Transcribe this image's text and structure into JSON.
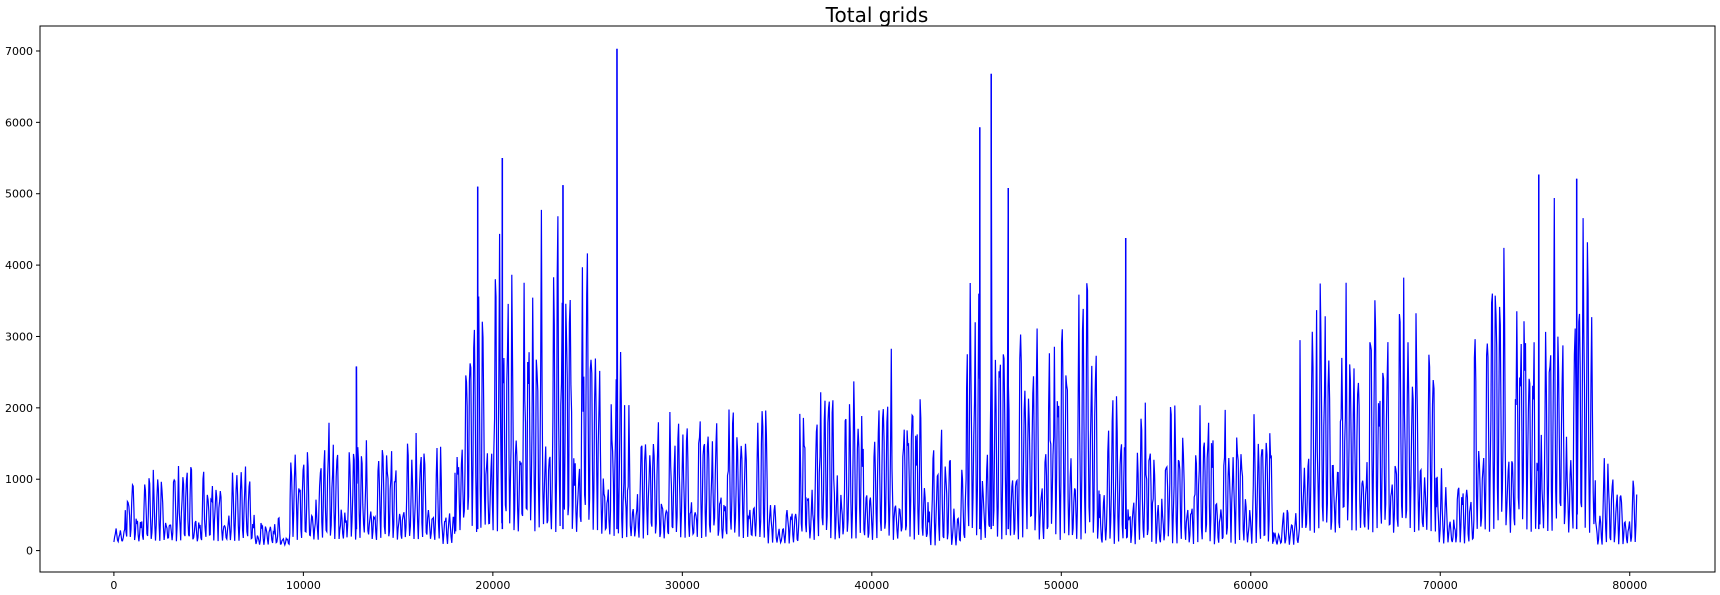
{
  "chart_data": {
    "type": "line",
    "title": "Total grids",
    "xlabel": "",
    "ylabel": "",
    "xlim": [
      -3900,
      84500
    ],
    "ylim": [
      -300,
      7350
    ],
    "xticks": [
      0,
      10000,
      20000,
      30000,
      40000,
      50000,
      60000,
      70000,
      80000
    ],
    "xtick_labels": [
      "0",
      "10000",
      "20000",
      "30000",
      "40000",
      "50000",
      "60000",
      "70000",
      "80000"
    ],
    "yticks": [
      0,
      1000,
      2000,
      3000,
      4000,
      5000,
      6000,
      7000
    ],
    "ytick_labels": [
      "0",
      "1000",
      "2000",
      "3000",
      "4000",
      "5000",
      "6000",
      "7000"
    ],
    "grid": false,
    "series_color": "#0000ff",
    "n_points": 80400,
    "x_range": [
      0,
      80400
    ],
    "series": [
      {
        "segments": [
          {
            "x": [
              0,
              600
            ],
            "min": 120,
            "max": 350
          },
          {
            "x": [
              600,
              7500
            ],
            "min": 130,
            "max": 1450
          },
          {
            "x": [
              7500,
              9300
            ],
            "min": 80,
            "max": 550
          },
          {
            "x": [
              9300,
              17300
            ],
            "min": 150,
            "max": 1980
          },
          {
            "x": [
              17300,
              18000
            ],
            "min": 90,
            "max": 700
          },
          {
            "x": [
              18000,
              25600
            ],
            "min": 260,
            "max": 5100
          },
          {
            "x": [
              25600,
              26800
            ],
            "min": 200,
            "max": 3400
          },
          {
            "x": [
              26800,
              34500
            ],
            "min": 170,
            "max": 2350
          },
          {
            "x": [
              34500,
              36200
            ],
            "min": 100,
            "max": 900
          },
          {
            "x": [
              36200,
              43000
            ],
            "min": 150,
            "max": 2980
          },
          {
            "x": [
              43000,
              45000
            ],
            "min": 70,
            "max": 1900
          },
          {
            "x": [
              45000,
              52000
            ],
            "min": 150,
            "max": 4400
          },
          {
            "x": [
              52000,
              61200
            ],
            "min": 90,
            "max": 2550
          },
          {
            "x": [
              61200,
              62600
            ],
            "min": 80,
            "max": 700
          },
          {
            "x": [
              62600,
              69800
            ],
            "min": 250,
            "max": 4350
          },
          {
            "x": [
              69800,
              71800
            ],
            "min": 100,
            "max": 1300
          },
          {
            "x": [
              71800,
              78200
            ],
            "min": 250,
            "max": 5200
          },
          {
            "x": [
              78200,
              80400
            ],
            "min": 80,
            "max": 1600
          }
        ],
        "peaks": [
          {
            "x": 12800,
            "y": 2580
          },
          {
            "x": 20500,
            "y": 5500
          },
          {
            "x": 19200,
            "y": 5100
          },
          {
            "x": 23700,
            "y": 5120
          },
          {
            "x": 26550,
            "y": 7030
          },
          {
            "x": 45700,
            "y": 5930
          },
          {
            "x": 46300,
            "y": 6680
          },
          {
            "x": 47200,
            "y": 5080
          },
          {
            "x": 53400,
            "y": 4380
          },
          {
            "x": 75200,
            "y": 5270
          },
          {
            "x": 77200,
            "y": 5210
          }
        ]
      }
    ]
  }
}
